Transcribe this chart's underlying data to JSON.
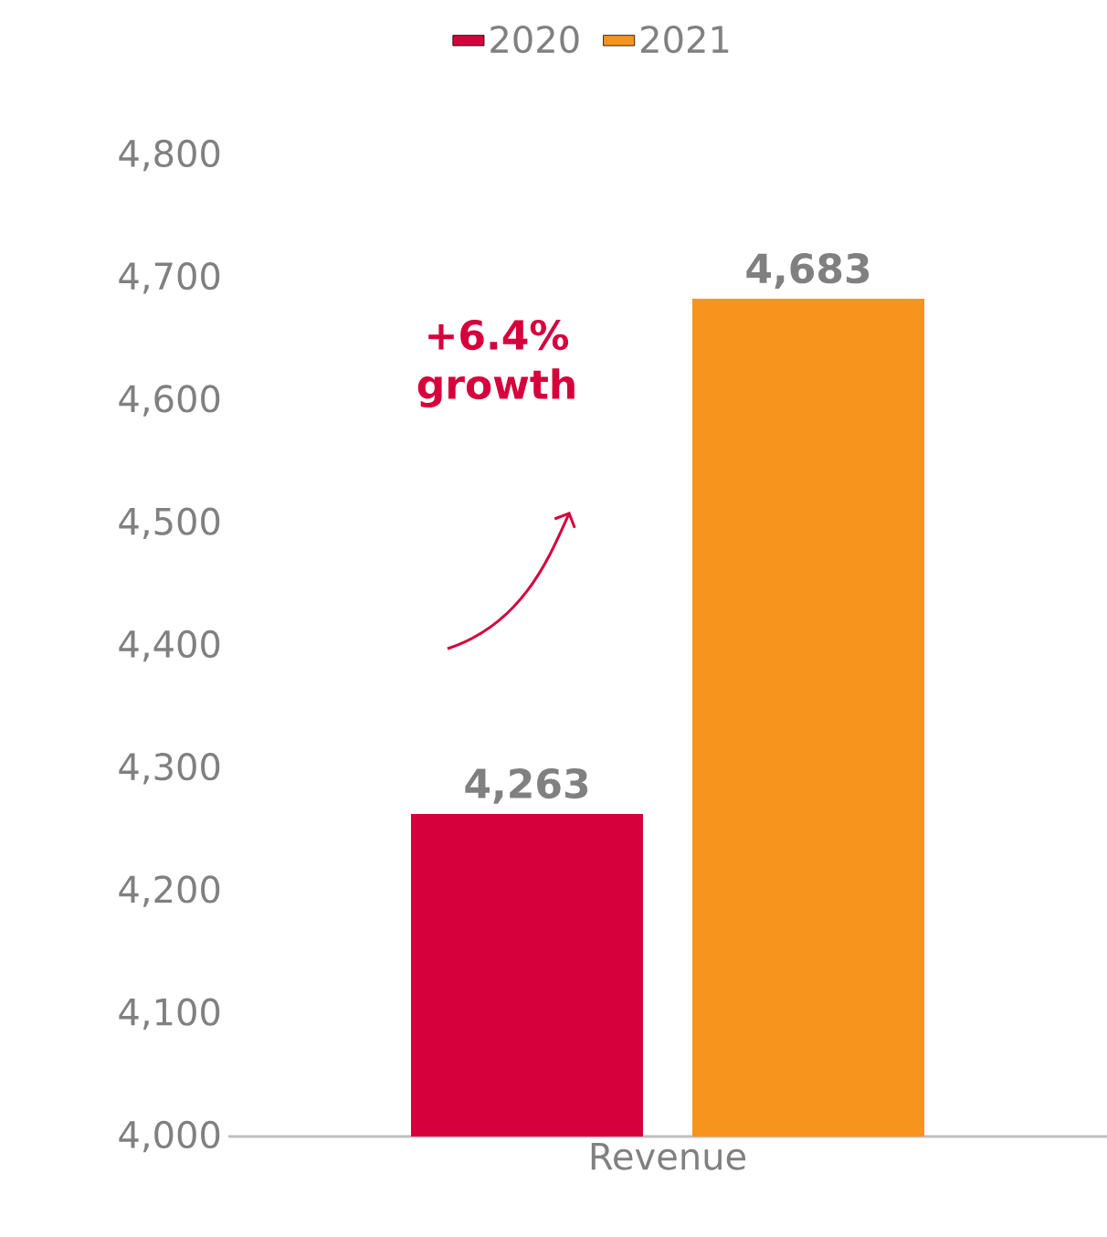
{
  "chart_data": {
    "type": "bar",
    "categories": [
      "Revenue"
    ],
    "series": [
      {
        "name": "2020",
        "color": "#d6003c",
        "values": [
          4263
        ],
        "value_labels": [
          "4,263"
        ]
      },
      {
        "name": "2021",
        "color": "#f7941d",
        "values": [
          4683
        ],
        "value_labels": [
          "4,683"
        ]
      }
    ],
    "ylim": [
      4000,
      4800
    ],
    "yticks": [
      {
        "value": 4000,
        "label": "4,000"
      },
      {
        "value": 4100,
        "label": "4,100"
      },
      {
        "value": 4200,
        "label": "4,200"
      },
      {
        "value": 4300,
        "label": "4,300"
      },
      {
        "value": 4400,
        "label": "4,400"
      },
      {
        "value": 4500,
        "label": "4,500"
      },
      {
        "value": 4600,
        "label": "4,600"
      },
      {
        "value": 4700,
        "label": "4,700"
      },
      {
        "value": 4800,
        "label": "4,800"
      }
    ],
    "legend": "top",
    "grid": false,
    "annotations": [
      "+6.4% growth"
    ]
  }
}
